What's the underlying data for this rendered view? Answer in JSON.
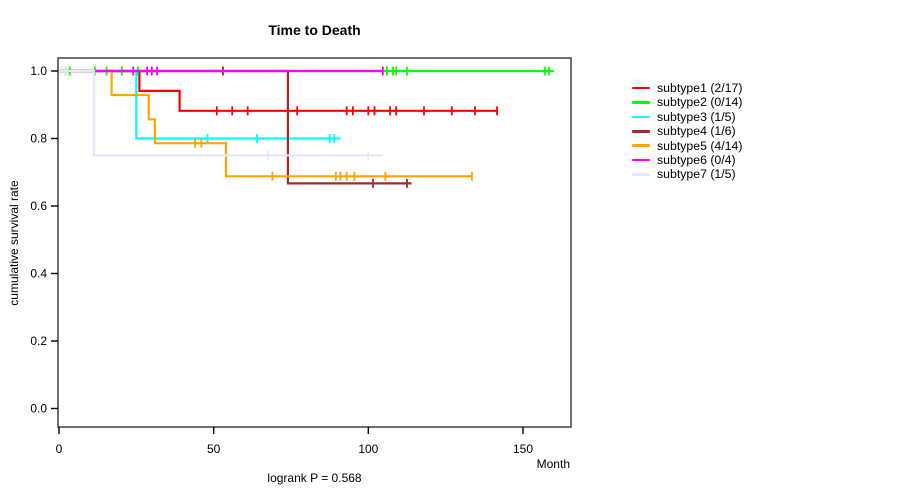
{
  "chart_data": {
    "type": "line",
    "variant": "kaplan-meier-step-curves",
    "title": "Time to Death",
    "xlabel": "Month",
    "ylabel": "cumulative survival rate",
    "footnote": "logrank P = 0.568",
    "xlim": [
      0,
      165
    ],
    "ylim": [
      0,
      1.04
    ],
    "xticks": [
      0,
      50,
      100,
      150
    ],
    "yticks": [
      0.0,
      0.2,
      0.4,
      0.6,
      0.8,
      1.0
    ],
    "grid": false,
    "legend_position": "right",
    "axis_color": "#000000",
    "box_color": "#4d4d4d",
    "series": [
      {
        "name": "subtype1 (2/17)",
        "color": "#ff0000",
        "steps": [
          [
            0,
            1
          ],
          [
            26,
            1
          ],
          [
            26,
            0.941
          ],
          [
            39,
            0.941
          ],
          [
            39,
            0.882
          ],
          [
            141.6,
            0.882
          ]
        ],
        "censors": [
          [
            51,
            0.882
          ],
          [
            56,
            0.882
          ],
          [
            61,
            0.882
          ],
          [
            77,
            0.882
          ],
          [
            93,
            0.882
          ],
          [
            95,
            0.882
          ],
          [
            100,
            0.882
          ],
          [
            102,
            0.882
          ],
          [
            107,
            0.882
          ],
          [
            109,
            0.882
          ],
          [
            118,
            0.882
          ],
          [
            127,
            0.882
          ],
          [
            134.5,
            0.882
          ],
          [
            141.6,
            0.882
          ]
        ]
      },
      {
        "name": "subtype2 (0/14)",
        "color": "#00ff00",
        "steps": [
          [
            0,
            1
          ],
          [
            160,
            1
          ]
        ],
        "censors": [
          [
            2,
            1
          ],
          [
            3.5,
            1
          ],
          [
            11.6,
            1
          ],
          [
            15.4,
            1
          ],
          [
            20.3,
            1
          ],
          [
            25.5,
            1
          ],
          [
            106,
            1
          ],
          [
            108,
            1
          ],
          [
            109,
            1
          ],
          [
            112.5,
            1
          ],
          [
            157,
            1
          ],
          [
            158.5,
            1
          ]
        ]
      },
      {
        "name": "subtype3 (1/5)",
        "color": "#00ffff",
        "steps": [
          [
            0,
            1
          ],
          [
            25,
            1
          ],
          [
            25,
            0.8
          ],
          [
            91,
            0.8
          ]
        ],
        "censors": [
          [
            48,
            0.8
          ],
          [
            64,
            0.8
          ],
          [
            87.5,
            0.8
          ],
          [
            89,
            0.8
          ]
        ]
      },
      {
        "name": "subtype4 (1/6)",
        "color": "#a52a2a",
        "steps": [
          [
            0,
            1
          ],
          [
            74,
            1
          ],
          [
            74,
            0.667
          ],
          [
            114,
            0.667
          ]
        ],
        "censors": [
          [
            53,
            1
          ],
          [
            101.5,
            0.667
          ],
          [
            112.5,
            0.667
          ]
        ]
      },
      {
        "name": "subtype5 (4/14)",
        "color": "#ffa500",
        "steps": [
          [
            0,
            1
          ],
          [
            17,
            1
          ],
          [
            17,
            0.929
          ],
          [
            29,
            0.929
          ],
          [
            29,
            0.857
          ],
          [
            31,
            0.857
          ],
          [
            31,
            0.786
          ],
          [
            54,
            0.786
          ],
          [
            54,
            0.688
          ],
          [
            133.5,
            0.688
          ]
        ],
        "censors": [
          [
            44,
            0.786
          ],
          [
            46,
            0.786
          ],
          [
            69,
            0.688
          ],
          [
            89.5,
            0.688
          ],
          [
            91,
            0.688
          ],
          [
            93,
            0.688
          ],
          [
            95.5,
            0.688
          ],
          [
            105.5,
            0.688
          ],
          [
            133.5,
            0.688
          ]
        ]
      },
      {
        "name": "subtype6 (0/4)",
        "color": "#ff00ff",
        "steps": [
          [
            0,
            1
          ],
          [
            104.7,
            1
          ]
        ],
        "censors": [
          [
            24,
            1
          ],
          [
            28.5,
            1
          ],
          [
            30,
            1
          ],
          [
            31.7,
            1
          ],
          [
            104.7,
            1
          ]
        ]
      },
      {
        "name": "subtype7 (1/5)",
        "color": "#e6e6fa",
        "steps": [
          [
            0,
            1
          ],
          [
            11.3,
            1
          ],
          [
            11.3,
            0.75
          ],
          [
            104.7,
            0.75
          ]
        ],
        "censors": [
          [
            0.6,
            1
          ],
          [
            1.9,
            1
          ],
          [
            67.6,
            0.75
          ],
          [
            100,
            0.75
          ]
        ]
      }
    ]
  }
}
